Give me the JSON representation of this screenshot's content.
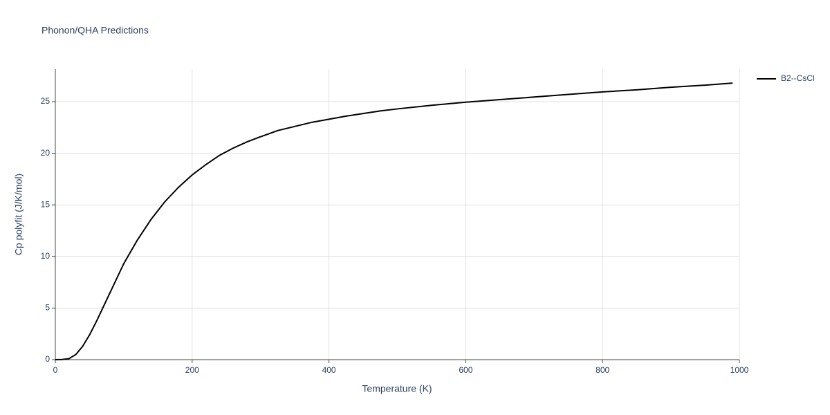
{
  "chart_data": {
    "type": "line",
    "title": "Phonon/QHA Predictions",
    "x_label": "Temperature (K)",
    "y_label": "Cp polyfit (J/K/mol)",
    "xlim": [
      0,
      1000
    ],
    "xticks": [
      0,
      200,
      400,
      600,
      800,
      1000
    ],
    "ylim": [
      0,
      28.15
    ],
    "yticks": [
      0,
      5,
      10,
      15,
      20,
      25
    ],
    "grid": true,
    "legend": "top-right",
    "x": [
      0,
      10,
      20,
      30,
      40,
      50,
      60,
      70,
      80,
      90,
      100,
      120,
      140,
      160,
      180,
      200,
      220,
      240,
      260,
      280,
      300,
      325,
      350,
      375,
      400,
      425,
      450,
      475,
      500,
      550,
      600,
      650,
      700,
      750,
      800,
      850,
      900,
      950,
      990
    ],
    "series": [
      {
        "name": "B2--CsCl",
        "color": "#000000",
        "values": [
          0,
          0.02,
          0.1,
          0.5,
          1.3,
          2.4,
          3.7,
          5.1,
          6.5,
          7.9,
          9.3,
          11.6,
          13.6,
          15.3,
          16.7,
          17.9,
          18.9,
          19.8,
          20.5,
          21.1,
          21.6,
          22.2,
          22.6,
          23.0,
          23.3,
          23.6,
          23.85,
          24.1,
          24.3,
          24.65,
          24.95,
          25.2,
          25.45,
          25.7,
          25.95,
          26.15,
          26.4,
          26.6,
          26.8
        ]
      }
    ]
  }
}
